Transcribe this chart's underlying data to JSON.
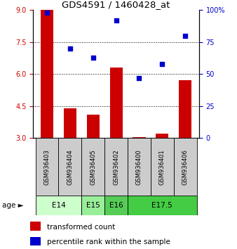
{
  "title": "GDS4591 / 1460428_at",
  "samples": [
    "GSM936403",
    "GSM936404",
    "GSM936405",
    "GSM936402",
    "GSM936400",
    "GSM936401",
    "GSM936406"
  ],
  "transformed_count": [
    9.0,
    4.4,
    4.1,
    6.3,
    3.05,
    3.2,
    5.7
  ],
  "percentile_rank": [
    98,
    70,
    63,
    92,
    47,
    58,
    80
  ],
  "age_spans": [
    {
      "label": "E14",
      "start": 0,
      "end": 1,
      "color": "#ccffcc"
    },
    {
      "label": "E15",
      "start": 2,
      "end": 2,
      "color": "#99ee99"
    },
    {
      "label": "E16",
      "start": 3,
      "end": 3,
      "color": "#55cc55"
    },
    {
      "label": "E17.5",
      "start": 4,
      "end": 6,
      "color": "#44cc44"
    }
  ],
  "ylim_left": [
    3,
    9
  ],
  "ylim_right": [
    0,
    100
  ],
  "yticks_left": [
    3,
    4.5,
    6,
    7.5,
    9
  ],
  "yticks_right": [
    0,
    25,
    50,
    75,
    100
  ],
  "ytick_right_labels": [
    "0",
    "25",
    "50",
    "75",
    "100%"
  ],
  "hgrid_lines": [
    4.5,
    6,
    7.5
  ],
  "bar_color": "#cc0000",
  "dot_color": "#0000cc",
  "sample_box_color": "#cccccc",
  "legend": [
    {
      "color": "#cc0000",
      "label": "transformed count"
    },
    {
      "color": "#0000cc",
      "label": "percentile rank within the sample"
    }
  ]
}
